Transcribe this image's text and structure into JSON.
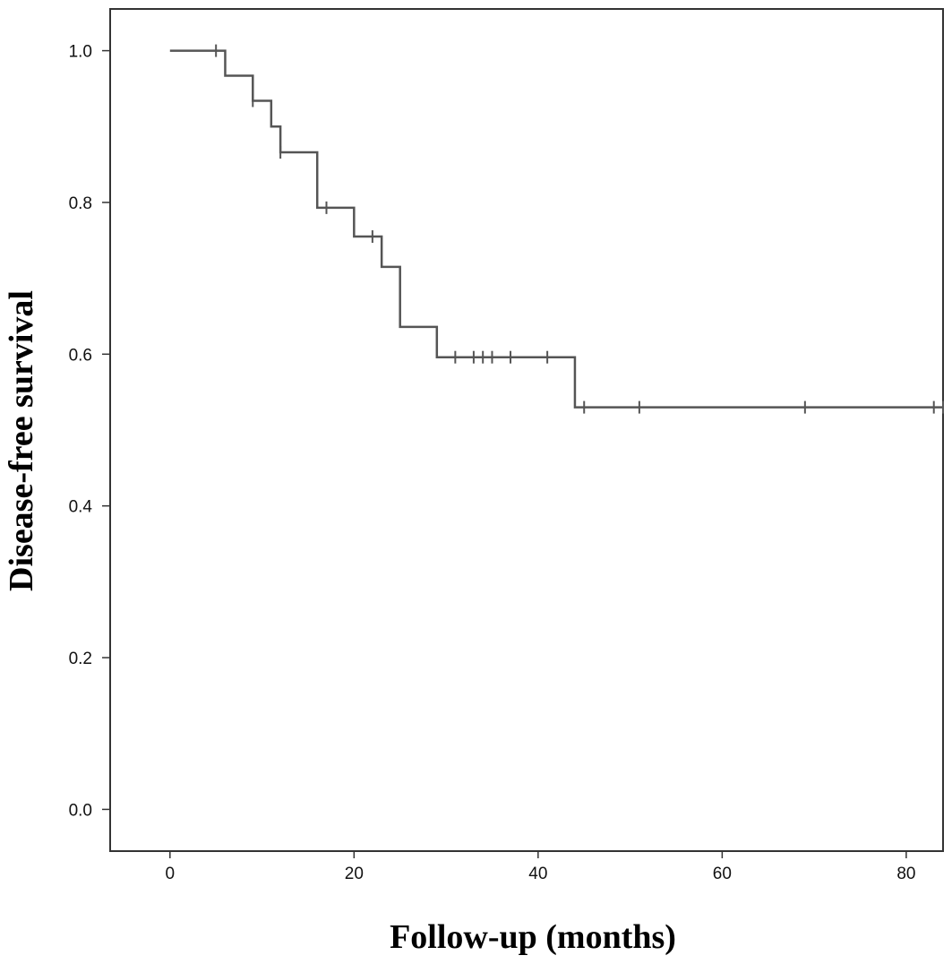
{
  "chart_data": {
    "type": "line",
    "subtype": "kaplan-meier step curve",
    "title": "",
    "xlabel": "Follow-up (months)",
    "ylabel": "Disease-free survival",
    "xlim": [
      -6.5,
      84
    ],
    "ylim": [
      -0.055,
      1.055
    ],
    "x_ticks": [
      0,
      20,
      40,
      60,
      80
    ],
    "x_tick_labels": [
      "0",
      "20",
      "40",
      "60",
      "80"
    ],
    "y_ticks": [
      0.0,
      0.2,
      0.4,
      0.6,
      0.8,
      1.0
    ],
    "y_tick_labels": [
      "0.0",
      "0.2",
      "0.4",
      "0.6",
      "0.8",
      "1.0"
    ],
    "grid": false,
    "legend": "none",
    "line_color": "#555555",
    "series": [
      {
        "steps": [
          {
            "x": 0,
            "y": 1.0
          },
          {
            "x": 6,
            "y": 0.967
          },
          {
            "x": 9,
            "y": 0.934
          },
          {
            "x": 11,
            "y": 0.9
          },
          {
            "x": 12,
            "y": 0.866
          },
          {
            "x": 16,
            "y": 0.793
          },
          {
            "x": 20,
            "y": 0.755
          },
          {
            "x": 23,
            "y": 0.715
          },
          {
            "x": 25,
            "y": 0.636
          },
          {
            "x": 29,
            "y": 0.596
          },
          {
            "x": 44,
            "y": 0.53
          }
        ],
        "end_x": 84,
        "censored": [
          {
            "x": 5,
            "y": 1.0
          },
          {
            "x": 9,
            "y": 0.934
          },
          {
            "x": 12,
            "y": 0.866
          },
          {
            "x": 17,
            "y": 0.793
          },
          {
            "x": 22,
            "y": 0.755
          },
          {
            "x": 31,
            "y": 0.596
          },
          {
            "x": 33,
            "y": 0.596
          },
          {
            "x": 34,
            "y": 0.596
          },
          {
            "x": 35,
            "y": 0.596
          },
          {
            "x": 37,
            "y": 0.596
          },
          {
            "x": 41,
            "y": 0.596
          },
          {
            "x": 45,
            "y": 0.53
          },
          {
            "x": 51,
            "y": 0.53
          },
          {
            "x": 69,
            "y": 0.53
          },
          {
            "x": 83,
            "y": 0.53
          },
          {
            "x": 84,
            "y": 0.53
          }
        ]
      }
    ]
  }
}
